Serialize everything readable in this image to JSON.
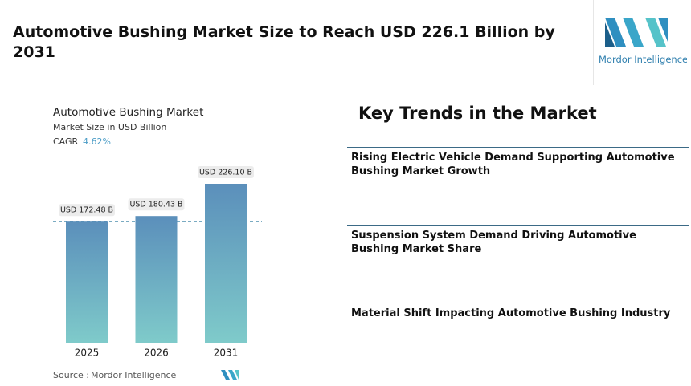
{
  "header": {
    "title": "Automotive Bushing Market Size to Reach USD 226.1 Billion by 2031"
  },
  "logo": {
    "text": "Mordor Intelligence"
  },
  "chart_data": {
    "type": "bar",
    "title": "Automotive Bushing Market",
    "subtitle": "Market Size in USD Billion",
    "cagr_label": "CAGR",
    "cagr_value": "4.62%",
    "categories": [
      "2025",
      "2026",
      "2031"
    ],
    "values": [
      172.48,
      180.43,
      226.1
    ],
    "value_labels": [
      "USD 172.48 B",
      "USD 180.43 B",
      "USD 226.10 B"
    ],
    "colors": [
      "#5b8fbb",
      "#7fcbca"
    ]
  },
  "source": {
    "label": "Source :",
    "text": "Mordor Intelligence"
  },
  "key_trends": {
    "title": "Key Trends in the Market",
    "items": [
      "Rising Electric Vehicle Demand Supporting Automotive Bushing Market Growth",
      "Suspension System Demand Driving Automotive Bushing Market Share",
      "Material Shift Impacting Automotive Bushing Industry"
    ]
  }
}
